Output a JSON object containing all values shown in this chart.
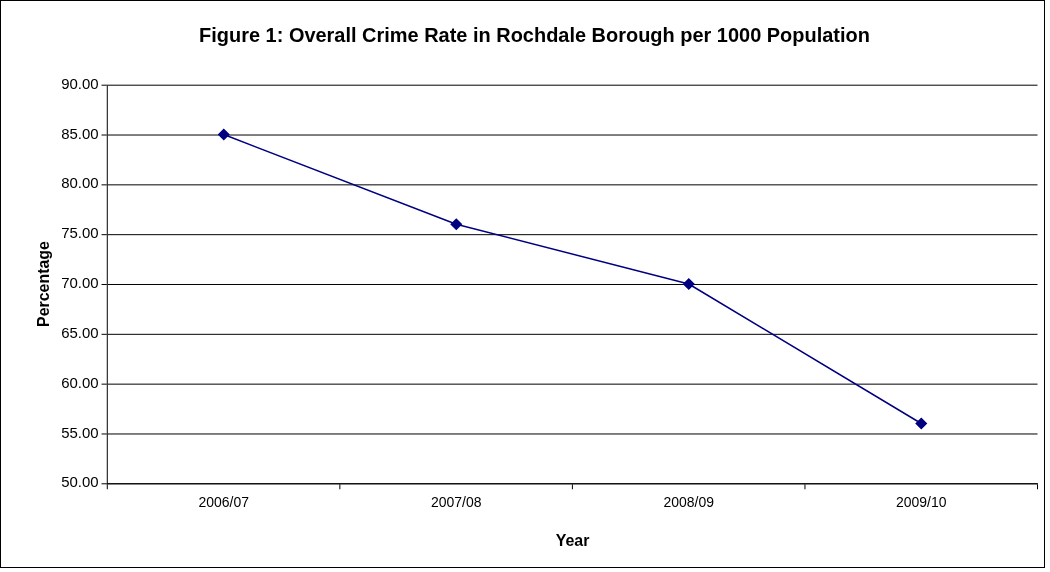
{
  "chart_data": {
    "type": "line",
    "title": "Figure 1: Overall Crime Rate in Rochdale Borough per 1000 Population",
    "xlabel": "Year",
    "ylabel": "Percentage",
    "categories": [
      "2006/07",
      "2007/08",
      "2008/09",
      "2009/10"
    ],
    "series": [
      {
        "color": "#000080",
        "values": [
          85,
          76,
          70,
          56
        ]
      }
    ],
    "ylim": [
      50,
      90
    ],
    "yticks": [
      {
        "value": 50,
        "label": "50.00"
      },
      {
        "value": 55,
        "label": "55.00"
      },
      {
        "value": 60,
        "label": "60.00"
      },
      {
        "value": 65,
        "label": "65.00"
      },
      {
        "value": 70,
        "label": "70.00"
      },
      {
        "value": 75,
        "label": "75.00"
      },
      {
        "value": 80,
        "label": "80.00"
      },
      {
        "value": 85,
        "label": "85.00"
      },
      {
        "value": 90,
        "label": "90.00"
      }
    ],
    "grid": "y",
    "legend": false,
    "marker": "diamond",
    "line_style": "solid"
  }
}
